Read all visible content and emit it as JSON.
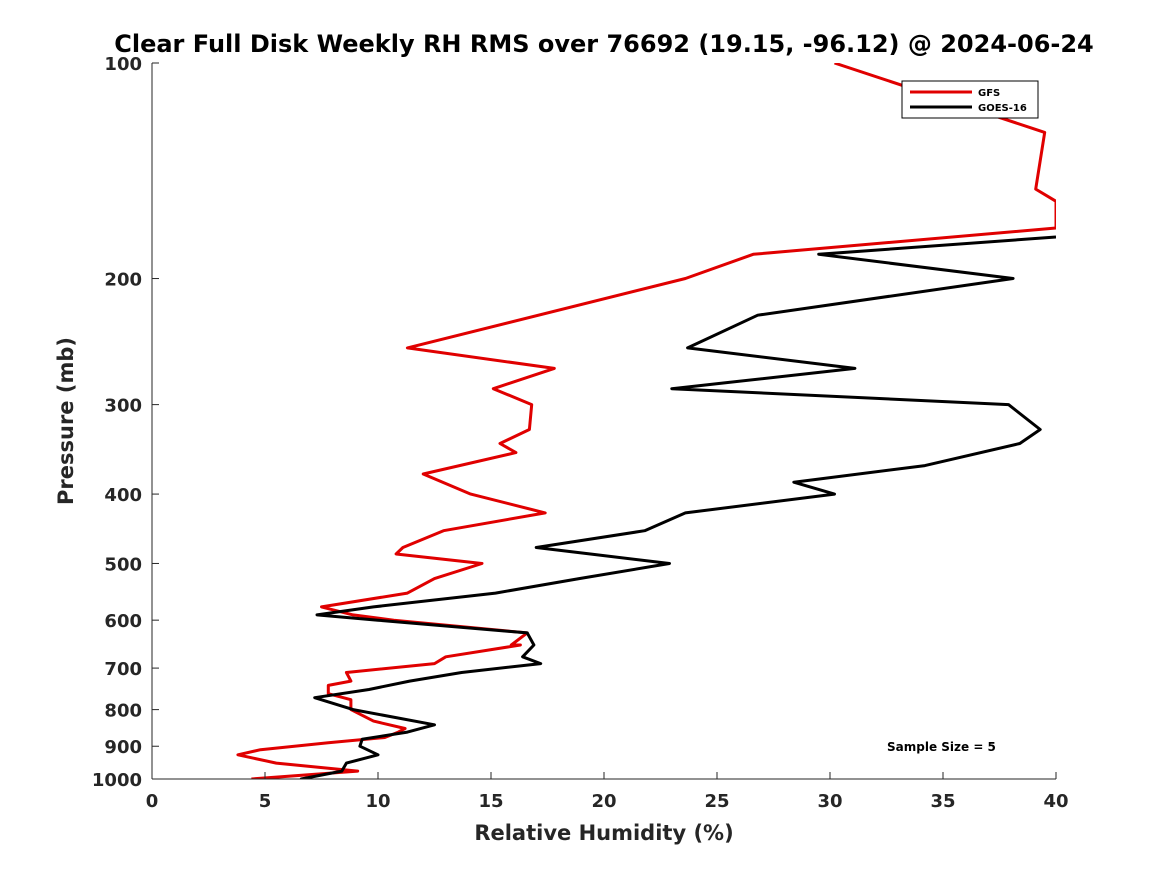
{
  "chart_data": {
    "type": "line",
    "title": "Clear Full Disk Weekly RH RMS over 76692 (19.15, -96.12) @ 2024-06-24",
    "xlabel": "Relative Humidity (%)",
    "ylabel": "Pressure (mb)",
    "xlim": [
      0,
      40
    ],
    "ylim": [
      100,
      1000
    ],
    "yscale": "log",
    "y_direction": "reversed",
    "xticks": [
      0,
      5,
      10,
      15,
      20,
      25,
      30,
      35,
      40
    ],
    "yticks": [
      100,
      200,
      300,
      400,
      500,
      600,
      700,
      800,
      900,
      1000
    ],
    "legend_position": "top-right",
    "annotation": "Sample Size = 5",
    "series": [
      {
        "name": "GFS",
        "color": "#e00000",
        "points": [
          [
            30.2,
            100
          ],
          [
            39.5,
            125
          ],
          [
            39.1,
            150
          ],
          [
            40.0,
            156
          ],
          [
            40.0,
            170
          ],
          [
            26.6,
            185
          ],
          [
            23.6,
            200
          ],
          [
            11.3,
            250
          ],
          [
            17.8,
            267
          ],
          [
            15.1,
            285
          ],
          [
            16.8,
            300
          ],
          [
            16.7,
            325
          ],
          [
            15.4,
            340
          ],
          [
            16.1,
            350
          ],
          [
            12.0,
            375
          ],
          [
            14.1,
            400
          ],
          [
            17.4,
            425
          ],
          [
            12.9,
            450
          ],
          [
            11.1,
            475
          ],
          [
            10.8,
            485
          ],
          [
            14.6,
            500
          ],
          [
            12.5,
            525
          ],
          [
            11.3,
            550
          ],
          [
            7.5,
            575
          ],
          [
            8.9,
            590
          ],
          [
            10.7,
            600
          ],
          [
            16.6,
            625
          ],
          [
            15.9,
            650
          ],
          [
            16.3,
            650
          ],
          [
            13.0,
            675
          ],
          [
            12.5,
            690
          ],
          [
            8.6,
            710
          ],
          [
            8.8,
            730
          ],
          [
            7.8,
            740
          ],
          [
            7.8,
            760
          ],
          [
            8.8,
            775
          ],
          [
            8.8,
            800
          ],
          [
            9.8,
            830
          ],
          [
            11.2,
            850
          ],
          [
            10.9,
            860
          ],
          [
            10.3,
            875
          ],
          [
            7.8,
            890
          ],
          [
            4.8,
            910
          ],
          [
            3.8,
            925
          ],
          [
            5.5,
            950
          ],
          [
            9.1,
            975
          ],
          [
            4.4,
            1000
          ]
        ]
      },
      {
        "name": "GOES-16",
        "color": "#000000",
        "points": [
          [
            40.0,
            175
          ],
          [
            29.5,
            185
          ],
          [
            38.1,
            200
          ],
          [
            26.8,
            225
          ],
          [
            23.7,
            250
          ],
          [
            31.1,
            267
          ],
          [
            23.0,
            285
          ],
          [
            37.9,
            300
          ],
          [
            39.3,
            325
          ],
          [
            38.4,
            340
          ],
          [
            34.2,
            365
          ],
          [
            28.4,
            385
          ],
          [
            30.2,
            400
          ],
          [
            23.6,
            425
          ],
          [
            21.8,
            450
          ],
          [
            17.0,
            475
          ],
          [
            19.4,
            485
          ],
          [
            22.9,
            500
          ],
          [
            18.9,
            525
          ],
          [
            15.2,
            550
          ],
          [
            9.8,
            575
          ],
          [
            7.3,
            590
          ],
          [
            10.0,
            600
          ],
          [
            16.6,
            625
          ],
          [
            16.9,
            650
          ],
          [
            16.4,
            675
          ],
          [
            17.2,
            690
          ],
          [
            13.7,
            710
          ],
          [
            11.4,
            730
          ],
          [
            9.6,
            750
          ],
          [
            7.2,
            770
          ],
          [
            8.9,
            800
          ],
          [
            12.5,
            840
          ],
          [
            11.3,
            860
          ],
          [
            9.3,
            880
          ],
          [
            9.2,
            900
          ],
          [
            10.0,
            925
          ],
          [
            8.6,
            950
          ],
          [
            8.4,
            975
          ],
          [
            6.6,
            1000
          ],
          [
            7.0,
            1000
          ]
        ]
      }
    ]
  }
}
